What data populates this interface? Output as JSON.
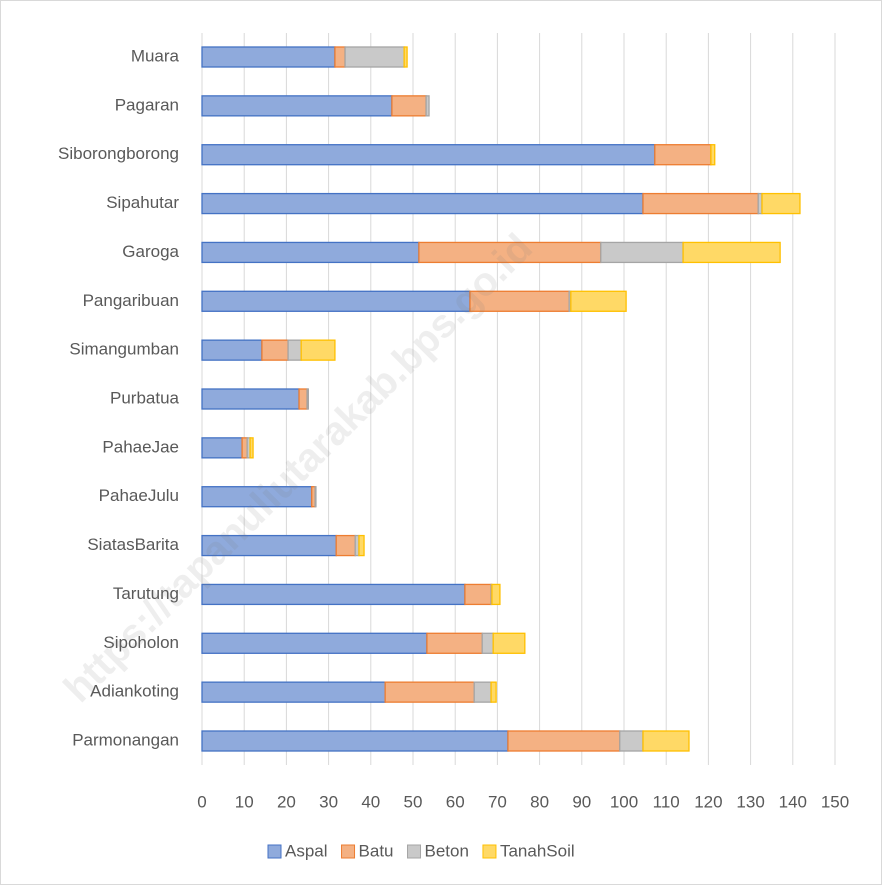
{
  "chart_data": {
    "type": "bar",
    "orientation": "horizontal",
    "stacked": true,
    "watermark": "https://tapanuliutarakab.bps.go.id",
    "categories": [
      "Muara",
      "Pagaran",
      "Siborongborong",
      "Sipahutar",
      "Garoga",
      "Pangaribuan",
      "Simangumban",
      "Purbatua",
      "PahaeJae",
      "PahaeJulu",
      "SiatasBarita",
      "Tarutung",
      "Sipoholon",
      "Adiankoting",
      "Parmonangan"
    ],
    "series": [
      {
        "name": "Aspal",
        "color": "#8faadc",
        "edge": "#4472c4",
        "values": [
          31.5,
          45,
          107.3,
          104.5,
          51.4,
          63.5,
          14.2,
          23,
          9.5,
          26,
          31.8,
          62.3,
          53.3,
          43.4,
          72.5
        ]
      },
      {
        "name": "Batu",
        "color": "#f4b183",
        "edge": "#ed7d31",
        "values": [
          2.4,
          8.1,
          13.3,
          27.3,
          43.1,
          23.5,
          6.2,
          1.9,
          1.2,
          0.8,
          4.5,
          6.2,
          13.1,
          21.1,
          26.5
        ]
      },
      {
        "name": "Beton",
        "color": "#c9c9c9",
        "edge": "#a5a5a5",
        "values": [
          14,
          0.7,
          0,
          0.9,
          19.5,
          0.4,
          3.1,
          0.3,
          0.7,
          0.2,
          0.9,
          0.2,
          2.6,
          4,
          5.5
        ]
      },
      {
        "name": "TanahSoil",
        "color": "#ffd966",
        "edge": "#ffc000",
        "values": [
          0.7,
          0,
          0.9,
          9,
          23,
          13.1,
          8,
          0,
          0.7,
          0,
          1.2,
          1.9,
          7.5,
          1.2,
          10.9
        ]
      }
    ],
    "xlim": [
      0,
      150
    ],
    "xticks": [
      0,
      10,
      20,
      30,
      40,
      50,
      60,
      70,
      80,
      90,
      100,
      110,
      120,
      130,
      140,
      150
    ],
    "grid": true,
    "legend": "bottom"
  }
}
